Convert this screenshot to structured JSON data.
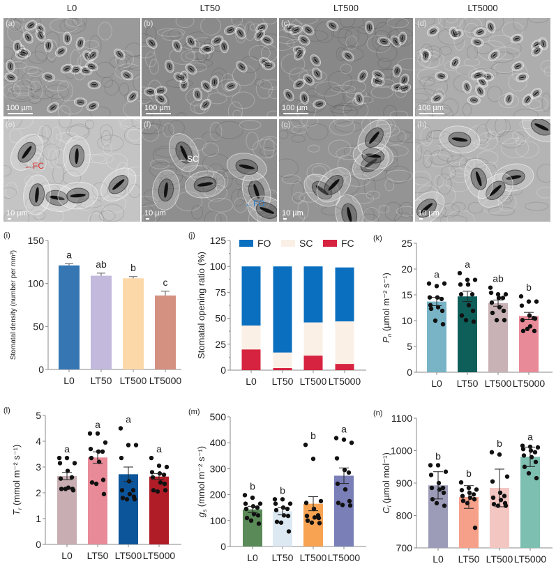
{
  "figure": {
    "column_titles": [
      "L0",
      "LT50",
      "LT500",
      "LT5000"
    ],
    "micrographs": [
      {
        "id": "a",
        "label": "(a)",
        "scale": "100 µm",
        "row": 0,
        "col": 0,
        "tone": "#9a9a9a",
        "density": "low-mag"
      },
      {
        "id": "b",
        "label": "(b)",
        "scale": "100 µm",
        "row": 0,
        "col": 1,
        "tone": "#8a8a8a",
        "density": "low-mag"
      },
      {
        "id": "c",
        "label": "(c)",
        "scale": "100 µm",
        "row": 0,
        "col": 2,
        "tone": "#888888",
        "density": "low-mag"
      },
      {
        "id": "d",
        "label": "(d)",
        "scale": "100 µm",
        "row": 0,
        "col": 3,
        "tone": "#adadad",
        "density": "low-mag"
      },
      {
        "id": "e",
        "label": "(e)",
        "scale": "10 µm",
        "row": 1,
        "col": 0,
        "tone": "#c4c4c4",
        "density": "high-mag",
        "annotation": {
          "text": "FC",
          "color": "#e0302e",
          "direction": "left"
        }
      },
      {
        "id": "f",
        "label": "(f)",
        "scale": "10 µm",
        "row": 1,
        "col": 1,
        "tone": "#8e8e8e",
        "density": "high-mag",
        "annotations": [
          {
            "text": "SC",
            "color": "#ffffff",
            "direction": "left"
          },
          {
            "text": "FO",
            "color": "#2d7fd0",
            "direction": "left"
          }
        ]
      },
      {
        "id": "g",
        "label": "(g)",
        "scale": "10 µm",
        "row": 1,
        "col": 2,
        "tone": "#949494",
        "density": "high-mag"
      },
      {
        "id": "h",
        "label": "(h)",
        "scale": "10 µm",
        "row": 1,
        "col": 3,
        "tone": "#b4b4b4",
        "density": "high-mag"
      }
    ],
    "annotations": {
      "fc": "FC",
      "sc": "SC",
      "fo": "FO"
    }
  },
  "chart_data": [
    {
      "id": "i",
      "panel_label": "(i)",
      "type": "bar",
      "title": "",
      "categories": [
        "L0",
        "LT50",
        "LT500",
        "LT5000"
      ],
      "values": [
        121,
        109,
        106,
        86
      ],
      "errors": [
        2,
        3,
        2,
        5
      ],
      "colors": [
        "#3677b3",
        "#c3b9dc",
        "#fcd8a8",
        "#d49080"
      ],
      "significance": [
        "a",
        "ab",
        "b",
        "c"
      ],
      "ylabel": "Stomatal density (number per mm²)",
      "xlabel": "",
      "ylim": [
        0,
        150
      ],
      "yticks": [
        0,
        50,
        100,
        150
      ],
      "grid": false
    },
    {
      "id": "j",
      "panel_label": "(j)",
      "type": "bar",
      "stacked": true,
      "categories": [
        "L0",
        "LT50",
        "LT500",
        "LT5000"
      ],
      "series": [
        {
          "name": "FC",
          "color": "#d6233f",
          "values": [
            20,
            2,
            14,
            6
          ]
        },
        {
          "name": "SC",
          "color": "#fbf0e6",
          "values": [
            23,
            15,
            32,
            41
          ]
        },
        {
          "name": "FO",
          "color": "#0a6fbf",
          "values": [
            57,
            83,
            54,
            52
          ]
        }
      ],
      "legend": [
        "FO",
        "SC",
        "FC"
      ],
      "legend_position": "top",
      "ylabel": "Stomatal opening ratio (%)",
      "xlabel": "",
      "ylim": [
        0,
        125
      ],
      "yticks": [
        0,
        25,
        50,
        75,
        100,
        125
      ],
      "grid": false
    },
    {
      "id": "k",
      "panel_label": "(k)",
      "type": "bar",
      "categories": [
        "L0",
        "LT50",
        "LT500",
        "LT5000"
      ],
      "values": [
        13.7,
        14.7,
        13.4,
        10.9
      ],
      "errors": [
        0.8,
        1.0,
        0.6,
        0.7
      ],
      "colors": [
        "#78b4c6",
        "#0e5e5a",
        "#c8b2b6",
        "#e88a98"
      ],
      "significance": [
        "a",
        "a",
        "ab",
        "b"
      ],
      "points": [
        [
          17.2,
          16.7,
          17.2,
          14.5,
          14.5,
          14.2,
          13.0,
          12.6,
          11.9,
          12.3,
          10.0,
          9.3
        ],
        [
          19.2,
          17.9,
          17.9,
          17.0,
          17.0,
          15.1,
          15.1,
          13.0,
          11.9,
          11.0,
          10.1,
          9.8
        ],
        [
          16.4,
          15.1,
          15.1,
          15.4,
          14.4,
          14.4,
          13.5,
          12.6,
          11.9,
          11.5,
          10.1,
          10.1
        ],
        [
          14.7,
          13.7,
          13.7,
          12.9,
          11.0,
          10.5,
          10.1,
          8.9,
          8.0,
          8.0,
          8.4,
          10.4
        ]
      ],
      "ylabel": "Pn (µmol m⁻² s⁻¹)",
      "ylabel_main": "P",
      "ylabel_sub": "n",
      "ylabel_unit": "(µmol m⁻² s⁻¹)",
      "xlabel": "",
      "ylim": [
        0,
        25
      ],
      "yticks": [
        0,
        5,
        10,
        15,
        20,
        25
      ],
      "grid": false
    },
    {
      "id": "l",
      "panel_label": "(l)",
      "type": "bar",
      "categories": [
        "L0",
        "LT50",
        "LT500",
        "LT5000"
      ],
      "values": [
        2.65,
        3.37,
        2.72,
        2.63
      ],
      "errors": [
        0.14,
        0.22,
        0.28,
        0.11
      ],
      "colors": [
        "#c8aeb2",
        "#e88a98",
        "#0c559a",
        "#b11d27"
      ],
      "significance": [
        "a",
        "a",
        "a",
        "a"
      ],
      "points": [
        [
          3.35,
          3.35,
          3.15,
          3.15,
          2.85,
          2.6,
          2.55,
          2.2,
          2.15,
          2.15,
          2.15,
          2.1
        ],
        [
          4.3,
          4.3,
          3.95,
          3.7,
          3.6,
          3.6,
          3.35,
          3.2,
          2.5,
          2.4,
          2.35,
          1.95
        ],
        [
          4.5,
          3.85,
          3.85,
          3.35,
          2.45,
          2.1,
          2.1,
          1.95,
          1.85,
          1.8,
          1.75,
          1.75
        ],
        [
          3.35,
          3.05,
          3.0,
          2.8,
          2.75,
          2.7,
          2.6,
          2.4,
          2.35,
          2.1,
          2.05,
          2.1
        ]
      ],
      "ylabel": "Tr (mmol m⁻² s⁻¹)",
      "ylabel_main": "T",
      "ylabel_sub": "r",
      "ylabel_unit": "(mmol m⁻² s⁻¹)",
      "xlabel": "",
      "ylim": [
        0,
        5
      ],
      "yticks": [
        0,
        1,
        2,
        3,
        4,
        5
      ],
      "grid": false
    },
    {
      "id": "m",
      "panel_label": "(m)",
      "type": "bar",
      "categories": [
        "L0",
        "LT50",
        "LT500",
        "LT5000"
      ],
      "values": [
        143,
        136,
        165,
        273
      ],
      "errors": [
        12,
        14,
        27,
        30
      ],
      "colors": [
        "#5a8a58",
        "#dce9f2",
        "#f7a352",
        "#7a7fb8"
      ],
      "significance": [
        "b",
        "b",
        "b",
        "a"
      ],
      "points": [
        [
          198,
          188,
          165,
          165,
          155,
          150,
          145,
          125,
          120,
          110,
          100,
          88
        ],
        [
          182,
          182,
          165,
          165,
          150,
          145,
          140,
          120,
          118,
          95,
          92,
          58
        ],
        [
          392,
          338,
          175,
          168,
          145,
          120,
          118,
          112,
          110,
          100,
          92,
          90
        ],
        [
          418,
          412,
          400,
          340,
          295,
          285,
          242,
          220,
          175,
          168,
          160,
          158
        ]
      ],
      "ylabel": "gs (mmol m⁻² s⁻¹)",
      "ylabel_main": "g",
      "ylabel_sub": "s",
      "ylabel_unit": "(mmol m⁻² s⁻¹)",
      "xlabel": "",
      "ylim": [
        0,
        500
      ],
      "yticks": [
        0,
        100,
        200,
        300,
        400,
        500
      ],
      "grid": false
    },
    {
      "id": "n",
      "panel_label": "(n)",
      "type": "bar",
      "categories": [
        "L0",
        "LT50",
        "LT500",
        "LT5000"
      ],
      "values": [
        893,
        857,
        885,
        981
      ],
      "errors": [
        42,
        35,
        58,
        30
      ],
      "colors": [
        "#9c9cb9",
        "#f6a08a",
        "#f3c6c2",
        "#7dbfb0"
      ],
      "significance": [
        "b",
        "b",
        "b",
        "a"
      ],
      "points": [
        [
          955,
          955,
          935,
          925,
          900,
          885,
          885,
          880,
          870,
          850,
          838,
          830
        ],
        [
          902,
          885,
          880,
          878,
          870,
          865,
          860,
          855,
          850,
          845,
          838,
          762
        ],
        [
          995,
          988,
          920,
          905,
          870,
          860,
          855,
          848,
          838,
          835,
          830,
          830
        ],
        [
          1015,
          1012,
          1010,
          1005,
          1000,
          995,
          985,
          980,
          965,
          950,
          930,
          915
        ]
      ],
      "ylabel": "Ci (µmol mol⁻¹)",
      "ylabel_main": "C",
      "ylabel_sub": "i",
      "ylabel_unit": "(µmol mol⁻¹)",
      "xlabel": "",
      "ylim": [
        700,
        1100
      ],
      "yticks": [
        700,
        800,
        900,
        1000,
        1100
      ],
      "grid": false
    }
  ]
}
